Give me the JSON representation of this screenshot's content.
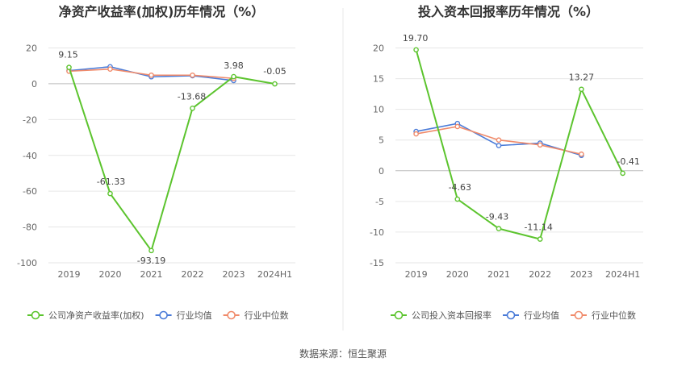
{
  "colors": {
    "company": "#5cc42e",
    "industry_avg": "#4a7bd8",
    "industry_median": "#f08a6a",
    "grid": "#e6e6e6",
    "divider": "#e8e8e8"
  },
  "legend": {
    "company_left": "公司净资产收益率(加权)",
    "company_right": "公司投入资本回报率",
    "avg": "行业均值",
    "median": "行业中位数"
  },
  "source": "数据来源：恒生聚源",
  "chart_data": [
    {
      "type": "line",
      "title": "净资产收益率(加权)历年情况（%）",
      "categories": [
        "2019",
        "2020",
        "2021",
        "2022",
        "2023",
        "2024H1"
      ],
      "yticks": [
        20,
        0,
        -20,
        -40,
        -60,
        -80,
        -100
      ],
      "ylim": [
        -100,
        20
      ],
      "series": [
        {
          "name": "公司净资产收益率(加权)",
          "values": [
            9.15,
            -61.33,
            -93.19,
            -13.68,
            3.98,
            -0.05
          ],
          "labels": [
            "9.15",
            "-61.33",
            "-93.19",
            "-13.68",
            "3.98",
            "-0.05"
          ]
        },
        {
          "name": "行业均值",
          "values": [
            7.3,
            9.5,
            3.9,
            4.5,
            1.8,
            null
          ]
        },
        {
          "name": "行业中位数",
          "values": [
            7.0,
            8.2,
            4.8,
            4.8,
            3.0,
            null
          ]
        }
      ]
    },
    {
      "type": "line",
      "title": "投入资本回报率历年情况（%）",
      "categories": [
        "2019",
        "2020",
        "2021",
        "2022",
        "2023",
        "2024H1"
      ],
      "yticks": [
        20,
        15,
        10,
        5,
        0,
        -5,
        -10,
        -15
      ],
      "ylim": [
        -15,
        20
      ],
      "series": [
        {
          "name": "公司投入资本回报率",
          "values": [
            19.7,
            -4.63,
            -9.43,
            -11.14,
            13.27,
            -0.41
          ],
          "labels": [
            "19.70",
            "-4.63",
            "-9.43",
            "-11.14",
            "13.27",
            "-0.41"
          ]
        },
        {
          "name": "行业均值",
          "values": [
            6.4,
            7.7,
            4.1,
            4.5,
            2.5,
            null
          ]
        },
        {
          "name": "行业中位数",
          "values": [
            6.0,
            7.2,
            5.0,
            4.2,
            2.7,
            null
          ]
        }
      ]
    }
  ]
}
